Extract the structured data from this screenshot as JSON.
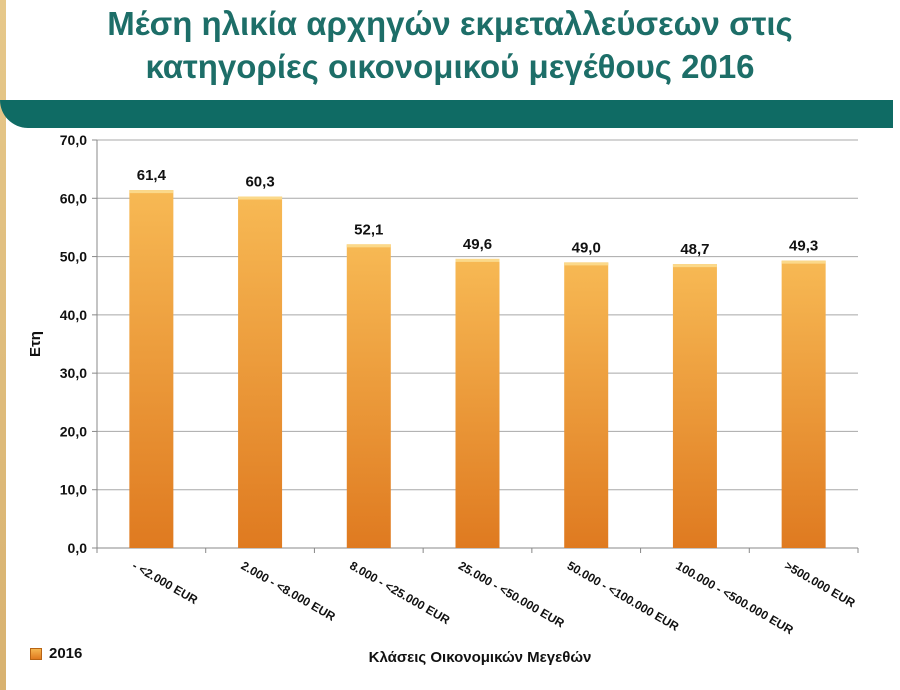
{
  "title": "Μέση ηλικία αρχηγών εκμεταλλεύσεων στις κατηγορίες οικονομικού μεγέθους 2016",
  "colors": {
    "title": "#1d6e68",
    "band": "#0f6b64",
    "bar_top": "#f7b954",
    "bar_bottom": "#df7a20"
  },
  "chart_data": {
    "type": "bar",
    "categories": [
      "- <2.000 EUR",
      "2.000 - <8.000 EUR",
      "8.000 - <25.000 EUR",
      "25.000 - <50.000 EUR",
      "50.000 - <100.000 EUR",
      "100.000 - <500.000 EUR",
      ">500.000 EUR"
    ],
    "series": [
      {
        "name": "2016",
        "values": [
          61.4,
          60.3,
          52.1,
          49.6,
          49.0,
          48.7,
          49.3
        ]
      }
    ],
    "data_labels": [
      "61,4",
      "60,3",
      "52,1",
      "49,6",
      "49,0",
      "48,7",
      "49,3"
    ],
    "yticks": [
      "0,0",
      "10,0",
      "20,0",
      "30,0",
      "40,0",
      "50,0",
      "60,0",
      "70,0"
    ],
    "ylim": [
      0,
      70
    ],
    "ylabel": "Ετη",
    "xlabel": "Κλάσεις Οικονομικών Μεγεθών",
    "grid": true,
    "legend": "bottom-left"
  }
}
